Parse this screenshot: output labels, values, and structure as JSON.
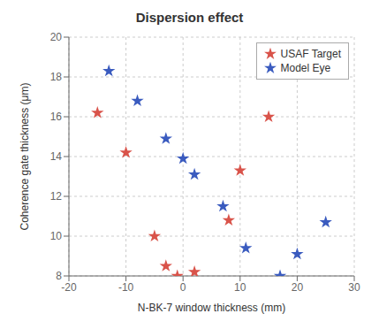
{
  "chart_data": {
    "type": "scatter",
    "title": "Dispersion effect",
    "xlabel": "N-BK-7 window thickness (mm)",
    "ylabel": "Coherence gate thickness (μm)",
    "xlim": [
      -20,
      30
    ],
    "ylim": [
      8,
      20
    ],
    "xticks": [
      -20,
      -10,
      0,
      10,
      20,
      30
    ],
    "yticks": [
      8,
      10,
      12,
      14,
      16,
      18,
      20
    ],
    "grid": true,
    "legend": "upper right",
    "series": [
      {
        "name": "USAF Target",
        "color": "#d9534a",
        "marker": "star",
        "x": [
          -15,
          -10,
          -5,
          -3,
          -1,
          2,
          8,
          10,
          15
        ],
        "values": [
          16.2,
          14.2,
          10.0,
          8.5,
          8.0,
          8.2,
          10.8,
          13.3,
          16.0
        ]
      },
      {
        "name": "Model Eye",
        "color": "#3a5bbf",
        "marker": "star",
        "x": [
          -13,
          -8,
          -3,
          0,
          2,
          7,
          11,
          17,
          20,
          25
        ],
        "values": [
          18.3,
          16.8,
          14.9,
          13.9,
          13.1,
          11.5,
          9.4,
          8.0,
          9.1,
          10.7
        ]
      }
    ]
  }
}
